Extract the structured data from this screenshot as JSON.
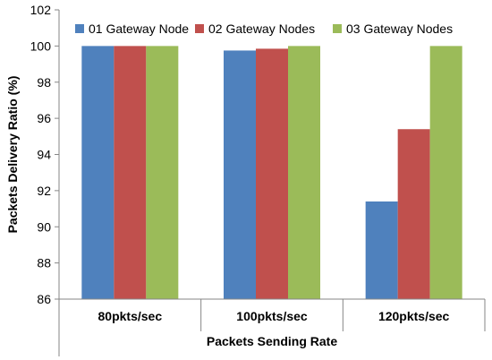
{
  "chart_data": {
    "type": "bar",
    "title": "",
    "xlabel": "Packets Sending Rate",
    "ylabel": "Packets Delivery Ratio (%)",
    "categories": [
      "80pkts/sec",
      "100pkts/sec",
      "120pkts/sec"
    ],
    "series": [
      {
        "name": "01 Gateway Node",
        "color": "#4f81bd",
        "values": [
          100,
          99.75,
          91.4
        ]
      },
      {
        "name": "02 Gateway Nodes",
        "color": "#c0504d",
        "values": [
          100,
          99.85,
          95.4
        ]
      },
      {
        "name": "03 Gateway Nodes",
        "color": "#9bbb59",
        "values": [
          100,
          100,
          100
        ]
      }
    ],
    "ylim": [
      86,
      102
    ],
    "yticks": [
      86,
      88,
      90,
      92,
      94,
      96,
      98,
      100,
      102
    ],
    "ytick_labels": [
      "86",
      "88",
      "90",
      "92",
      "94",
      "96",
      "98",
      "100",
      "102"
    ],
    "grid": false,
    "legend_position": "top"
  }
}
